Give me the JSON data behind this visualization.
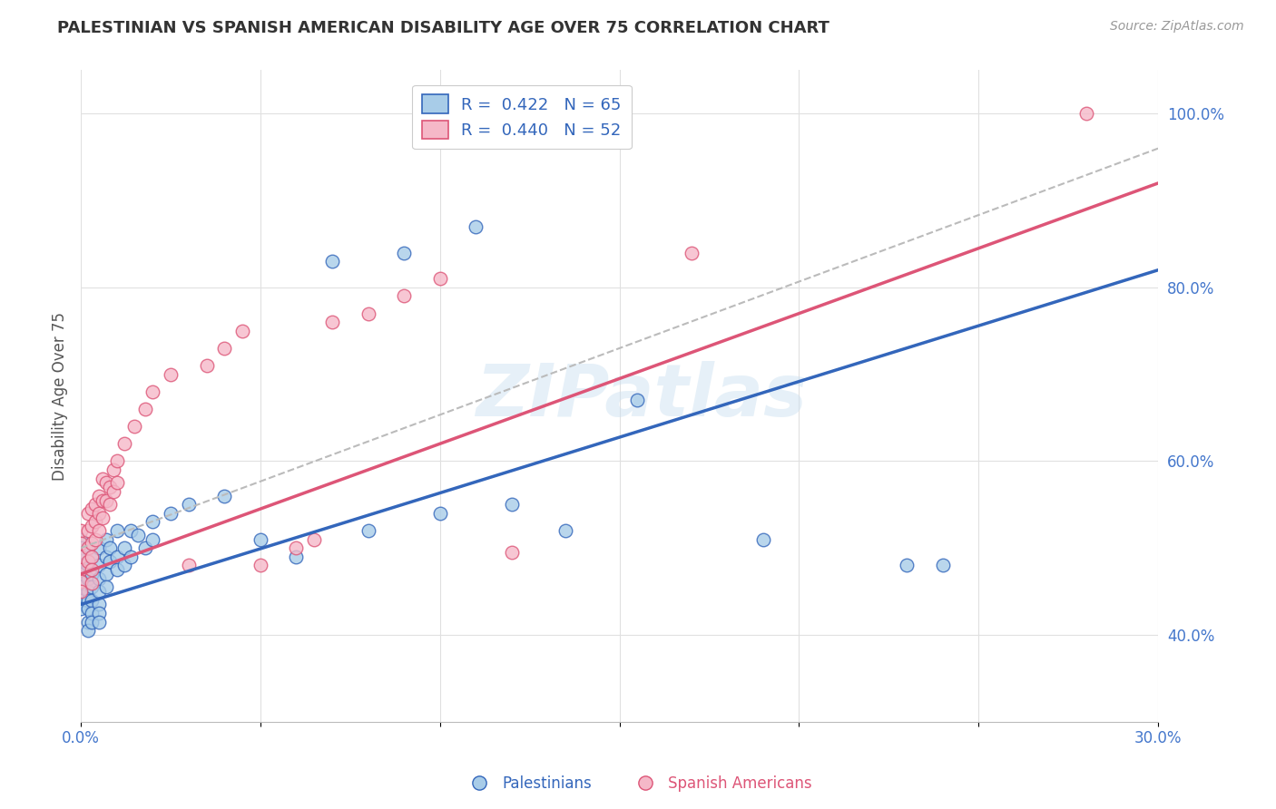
{
  "title": "PALESTINIAN VS SPANISH AMERICAN DISABILITY AGE OVER 75 CORRELATION CHART",
  "source": "Source: ZipAtlas.com",
  "ylabel": "Disability Age Over 75",
  "xlim": [
    0.0,
    0.3
  ],
  "ylim": [
    0.3,
    1.05
  ],
  "xticks": [
    0.0,
    0.05,
    0.1,
    0.15,
    0.2,
    0.25,
    0.3
  ],
  "yticks": [
    0.4,
    0.6,
    0.8,
    1.0
  ],
  "ytick_labels": [
    "40.0%",
    "60.0%",
    "80.0%",
    "100.0%"
  ],
  "xtick_labels": [
    "0.0%",
    "",
    "",
    "",
    "",
    "",
    "30.0%"
  ],
  "watermark": "ZIPatlas",
  "color_blue": "#a8cce8",
  "color_pink": "#f5b8c8",
  "color_blue_line": "#3366bb",
  "color_pink_line": "#dd5577",
  "color_gray_dashed": "#bbbbbb",
  "palestinians": [
    [
      0.0,
      0.51
    ],
    [
      0.0,
      0.5
    ],
    [
      0.0,
      0.49
    ],
    [
      0.0,
      0.48
    ],
    [
      0.0,
      0.47
    ],
    [
      0.0,
      0.46
    ],
    [
      0.0,
      0.455
    ],
    [
      0.0,
      0.445
    ],
    [
      0.0,
      0.44
    ],
    [
      0.0,
      0.435
    ],
    [
      0.0,
      0.43
    ],
    [
      0.002,
      0.5
    ],
    [
      0.002,
      0.48
    ],
    [
      0.002,
      0.465
    ],
    [
      0.002,
      0.45
    ],
    [
      0.002,
      0.44
    ],
    [
      0.002,
      0.43
    ],
    [
      0.002,
      0.415
    ],
    [
      0.002,
      0.405
    ],
    [
      0.003,
      0.49
    ],
    [
      0.003,
      0.47
    ],
    [
      0.003,
      0.455
    ],
    [
      0.003,
      0.44
    ],
    [
      0.003,
      0.425
    ],
    [
      0.003,
      0.415
    ],
    [
      0.005,
      0.5
    ],
    [
      0.005,
      0.48
    ],
    [
      0.005,
      0.465
    ],
    [
      0.005,
      0.45
    ],
    [
      0.005,
      0.435
    ],
    [
      0.005,
      0.425
    ],
    [
      0.005,
      0.415
    ],
    [
      0.007,
      0.51
    ],
    [
      0.007,
      0.49
    ],
    [
      0.007,
      0.47
    ],
    [
      0.007,
      0.455
    ],
    [
      0.008,
      0.5
    ],
    [
      0.008,
      0.485
    ],
    [
      0.01,
      0.52
    ],
    [
      0.01,
      0.49
    ],
    [
      0.01,
      0.475
    ],
    [
      0.012,
      0.5
    ],
    [
      0.012,
      0.48
    ],
    [
      0.014,
      0.52
    ],
    [
      0.014,
      0.49
    ],
    [
      0.016,
      0.515
    ],
    [
      0.018,
      0.5
    ],
    [
      0.02,
      0.53
    ],
    [
      0.02,
      0.51
    ],
    [
      0.025,
      0.54
    ],
    [
      0.03,
      0.55
    ],
    [
      0.04,
      0.56
    ],
    [
      0.05,
      0.51
    ],
    [
      0.06,
      0.49
    ],
    [
      0.07,
      0.83
    ],
    [
      0.08,
      0.52
    ],
    [
      0.09,
      0.84
    ],
    [
      0.1,
      0.54
    ],
    [
      0.11,
      0.87
    ],
    [
      0.12,
      0.55
    ],
    [
      0.135,
      0.52
    ],
    [
      0.155,
      0.67
    ],
    [
      0.19,
      0.51
    ],
    [
      0.23,
      0.48
    ],
    [
      0.24,
      0.48
    ]
  ],
  "spanish_americans": [
    [
      0.0,
      0.52
    ],
    [
      0.0,
      0.505
    ],
    [
      0.0,
      0.49
    ],
    [
      0.0,
      0.475
    ],
    [
      0.0,
      0.462
    ],
    [
      0.0,
      0.45
    ],
    [
      0.002,
      0.54
    ],
    [
      0.002,
      0.52
    ],
    [
      0.002,
      0.5
    ],
    [
      0.002,
      0.485
    ],
    [
      0.003,
      0.545
    ],
    [
      0.003,
      0.525
    ],
    [
      0.003,
      0.505
    ],
    [
      0.003,
      0.49
    ],
    [
      0.003,
      0.475
    ],
    [
      0.003,
      0.46
    ],
    [
      0.004,
      0.55
    ],
    [
      0.004,
      0.53
    ],
    [
      0.004,
      0.51
    ],
    [
      0.005,
      0.56
    ],
    [
      0.005,
      0.54
    ],
    [
      0.005,
      0.52
    ],
    [
      0.006,
      0.58
    ],
    [
      0.006,
      0.555
    ],
    [
      0.006,
      0.535
    ],
    [
      0.007,
      0.575
    ],
    [
      0.007,
      0.555
    ],
    [
      0.008,
      0.57
    ],
    [
      0.008,
      0.55
    ],
    [
      0.009,
      0.59
    ],
    [
      0.009,
      0.565
    ],
    [
      0.01,
      0.6
    ],
    [
      0.01,
      0.575
    ],
    [
      0.012,
      0.62
    ],
    [
      0.015,
      0.64
    ],
    [
      0.018,
      0.66
    ],
    [
      0.02,
      0.68
    ],
    [
      0.025,
      0.7
    ],
    [
      0.03,
      0.48
    ],
    [
      0.035,
      0.71
    ],
    [
      0.04,
      0.73
    ],
    [
      0.045,
      0.75
    ],
    [
      0.05,
      0.48
    ],
    [
      0.06,
      0.5
    ],
    [
      0.065,
      0.51
    ],
    [
      0.07,
      0.76
    ],
    [
      0.08,
      0.77
    ],
    [
      0.09,
      0.79
    ],
    [
      0.1,
      0.81
    ],
    [
      0.12,
      0.495
    ],
    [
      0.17,
      0.84
    ],
    [
      0.28,
      1.0
    ]
  ],
  "pal_line": {
    "x0": 0.0,
    "y0": 0.435,
    "x1": 0.3,
    "y1": 0.82
  },
  "spa_line": {
    "x0": 0.0,
    "y0": 0.47,
    "x1": 0.3,
    "y1": 0.92
  },
  "diag_line": {
    "x0": 0.0,
    "y0": 0.5,
    "x1": 0.3,
    "y1": 0.96
  }
}
